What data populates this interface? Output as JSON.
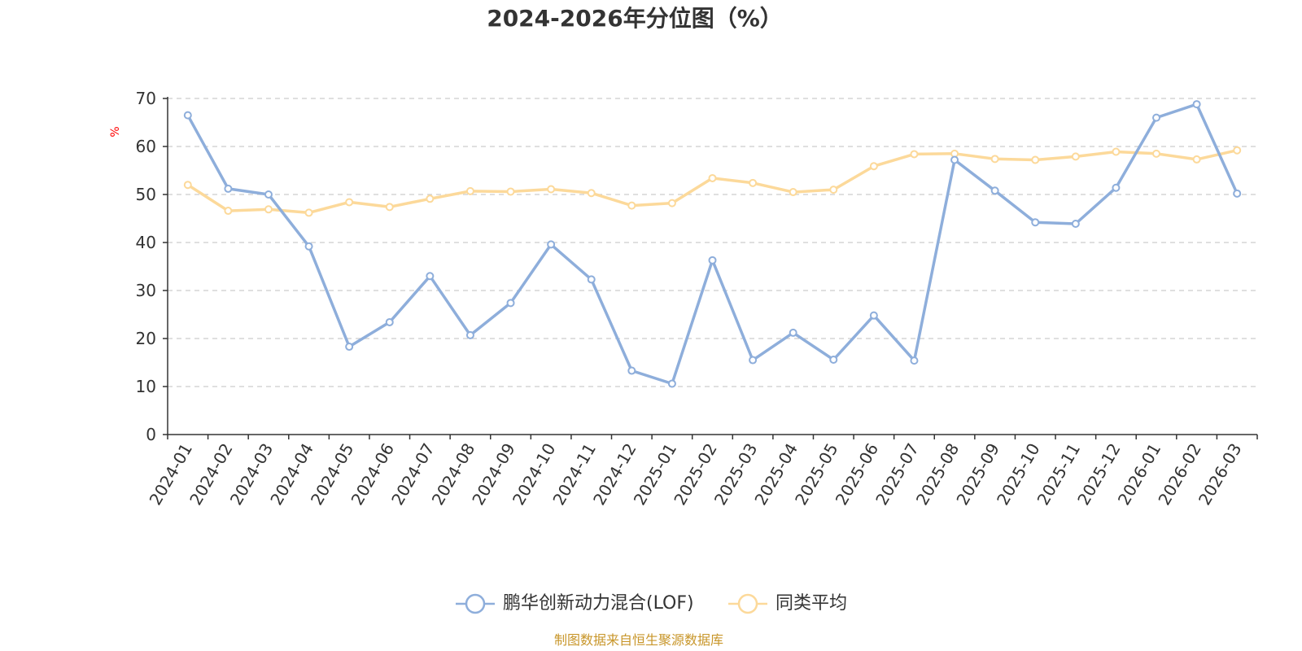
{
  "chart_data": {
    "type": "line",
    "title": "2024-2026年分位图（%）",
    "ylabel": "%",
    "xlabel": "",
    "ylim": [
      0,
      70
    ],
    "yticks": [
      0,
      10,
      20,
      30,
      40,
      50,
      60,
      70
    ],
    "grid": true,
    "legend_position": "bottom-center",
    "categories": [
      "2024-01",
      "2024-02",
      "2024-03",
      "2024-04",
      "2024-05",
      "2024-06",
      "2024-07",
      "2024-08",
      "2024-09",
      "2024-10",
      "2024-11",
      "2024-12",
      "2025-01",
      "2025-02",
      "2025-03",
      "2025-04",
      "2025-05",
      "2025-06",
      "2025-07",
      "2025-08",
      "2025-09",
      "2025-10",
      "2025-11",
      "2025-12",
      "2026-01",
      "2026-02",
      "2026-03"
    ],
    "series": [
      {
        "name": "鹏华创新动力混合(LOF)",
        "color": "#8eaedb",
        "values": [
          66.5,
          51.2,
          50.0,
          39.2,
          18.3,
          23.4,
          33.0,
          20.7,
          27.4,
          39.6,
          32.3,
          13.3,
          10.6,
          36.3,
          15.5,
          21.2,
          15.6,
          24.8,
          15.4,
          57.2,
          50.8,
          44.2,
          43.9,
          51.4,
          66.0,
          68.8,
          50.2
        ]
      },
      {
        "name": "同类平均",
        "color": "#fcd99a",
        "values": [
          52.0,
          46.6,
          46.9,
          46.2,
          48.4,
          47.4,
          49.1,
          50.7,
          50.6,
          51.1,
          50.3,
          47.7,
          48.2,
          53.4,
          52.4,
          50.5,
          51.0,
          55.9,
          58.4,
          58.5,
          57.4,
          57.2,
          57.9,
          58.9,
          58.5,
          57.3,
          59.2
        ]
      }
    ]
  },
  "source_note": "制图数据来自恒生聚源数据库"
}
